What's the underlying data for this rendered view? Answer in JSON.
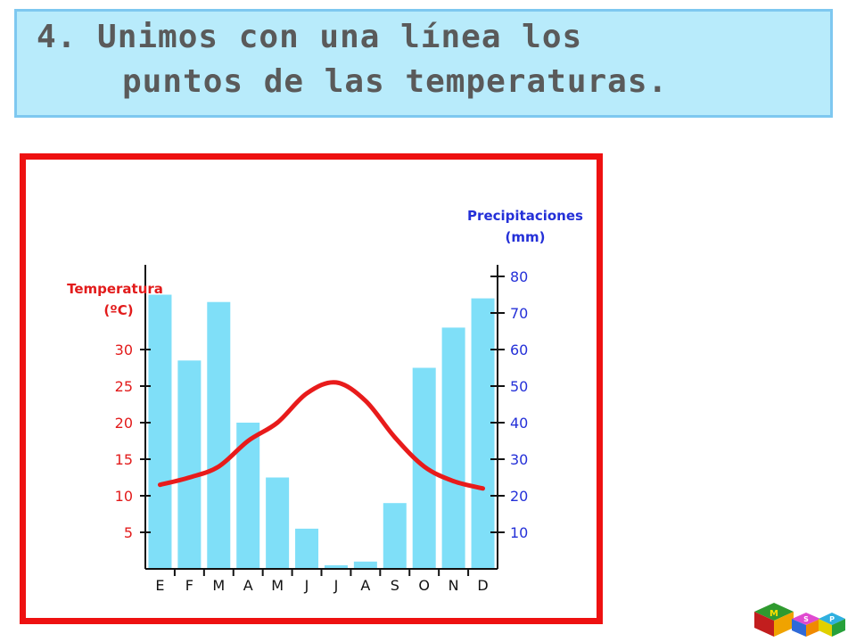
{
  "banner": {
    "line1": "4. Unimos con una línea los",
    "line2": "puntos de las temperaturas."
  },
  "colors": {
    "banner_bg": "#b8ebfb",
    "frame": "#ee1111",
    "bars": "#7fdff8",
    "temp_line": "#e81b1b",
    "temp_axis": "#e21b1b",
    "precip_axis": "#2430d8"
  },
  "chart_data": {
    "type": "bar+line",
    "categories": [
      "E",
      "F",
      "M",
      "A",
      "M",
      "J",
      "J",
      "A",
      "S",
      "O",
      "N",
      "D"
    ],
    "temp_axis": {
      "label_line1": "Temperatura",
      "label_line2": "(ºC)",
      "ticks": [
        5,
        10,
        15,
        20,
        25,
        30
      ],
      "ylim": [
        0,
        40
      ]
    },
    "precip_axis": {
      "label_line1": "Precipitaciones",
      "label_line2": "(mm)",
      "ticks": [
        10,
        20,
        30,
        40,
        50,
        60,
        70,
        80
      ],
      "ylim": [
        0,
        80
      ]
    },
    "precip_values": [
      75,
      57,
      73,
      40,
      25,
      11,
      1,
      2,
      18,
      55,
      66,
      74
    ],
    "temp_values": [
      11.5,
      12.5,
      14,
      17.5,
      20,
      24,
      25.5,
      23,
      18,
      14,
      12,
      11
    ],
    "grid": false
  },
  "logo": {
    "letters": [
      "M",
      "S",
      "P"
    ]
  }
}
